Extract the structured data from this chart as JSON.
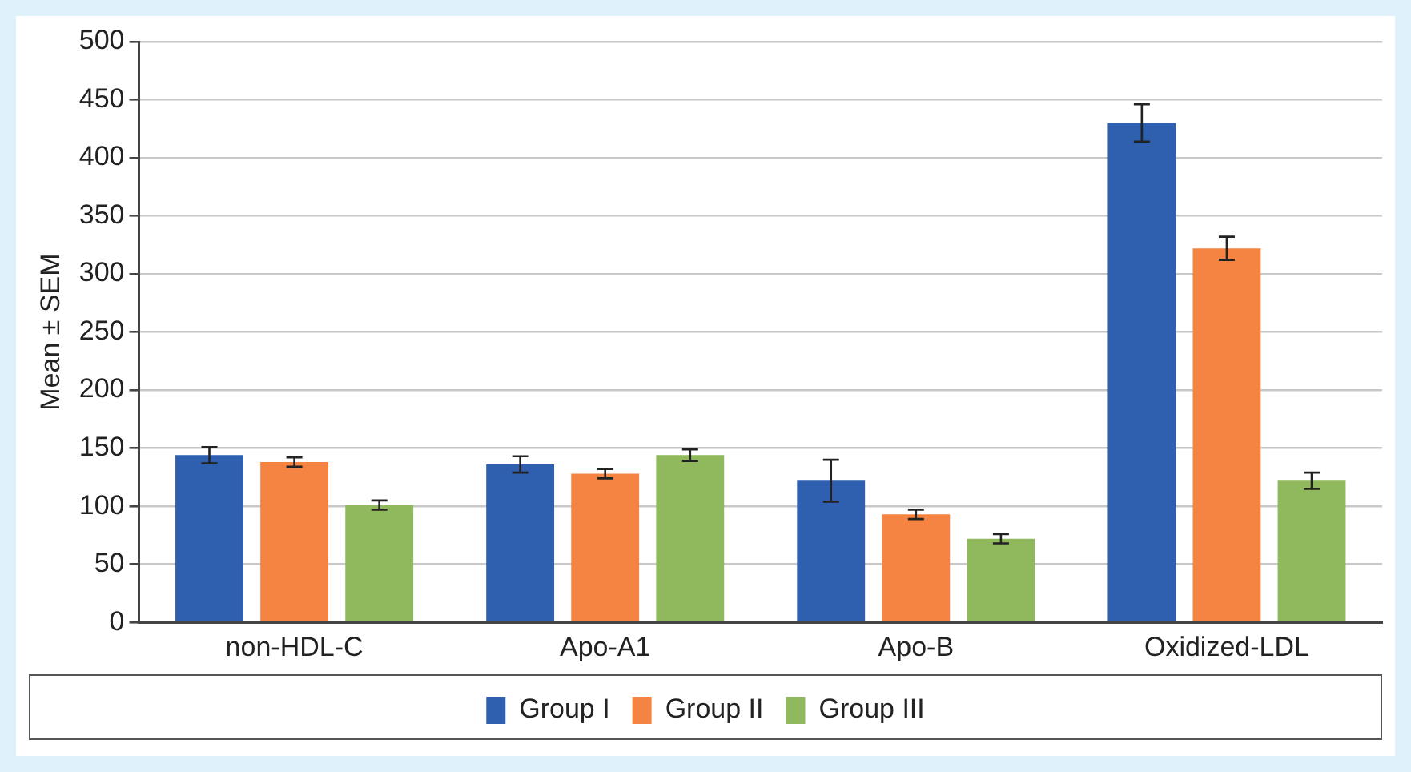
{
  "chart_data": {
    "type": "bar",
    "ylabel": "Mean ± SEM",
    "categories": [
      "non-HDL-C",
      "Apo-A1",
      "Apo-B",
      "Oxidized-LDL"
    ],
    "series": [
      {
        "name": "Group I",
        "color": "#2f5faf",
        "values": [
          144,
          136,
          122,
          430
        ],
        "errors": [
          7,
          7,
          18,
          16
        ]
      },
      {
        "name": "Group II",
        "color": "#f58442",
        "values": [
          138,
          128,
          93,
          322
        ],
        "errors": [
          4,
          4,
          4,
          10
        ]
      },
      {
        "name": "Group III",
        "color": "#90b95d",
        "values": [
          101,
          144,
          72,
          122
        ],
        "errors": [
          4,
          5,
          4,
          7
        ]
      }
    ],
    "ylim": [
      0,
      500
    ],
    "yticks": [
      0,
      50,
      100,
      150,
      200,
      250,
      300,
      350,
      400,
      450,
      500
    ],
    "grid": "y",
    "legend": "bottom"
  }
}
